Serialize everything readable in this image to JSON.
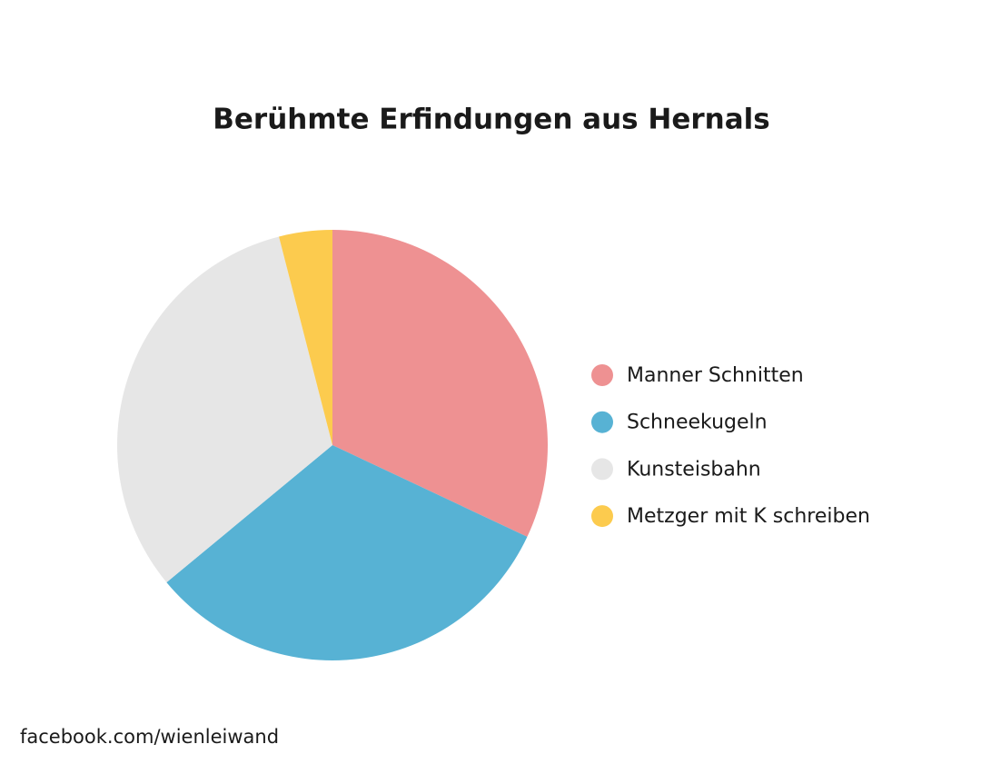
{
  "chart_data": {
    "type": "pie",
    "title": "Berühmte Erfindungen aus Hernals",
    "categories": [
      "Manner Schnitten",
      "Schneekugeln",
      "Kunsteisbahn",
      "Metzger mit K schreiben"
    ],
    "values": [
      32,
      32,
      32,
      4
    ],
    "colors": [
      "#ee9192",
      "#57b2d4",
      "#e6e6e6",
      "#fccb4e"
    ],
    "legend": "right",
    "source": "facebook.com/wienleiwand"
  }
}
